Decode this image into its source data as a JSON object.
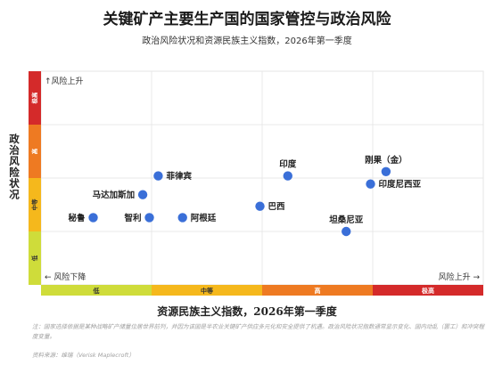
{
  "title": "关键矿产主要生产国的国家管控与政治风险",
  "subtitle": "政治风险状况和资源民族主义指数，2026年第一季度",
  "note": "注：国家选择依据是某种战略矿产储量位居世界前列，并因为该国是半农业关键矿产供应多元化和安全提供了机遇。政治风险状况指数通常显示变化、国内动乱（罢工）和冲突程度变量。",
  "source": "资料来源：维瑞（Verisk Maplecroft）",
  "chart_data": {
    "type": "scatter",
    "title": "关键矿产主要生产国的国家管控与政治风险",
    "subtitle": "政治风险状况和资源民族主义指数，2026年第一季度",
    "xlabel": "资源民族主义指数，2026年第一季度",
    "ylabel": "政治风险状况",
    "xlim": [
      0,
      10
    ],
    "ylim": [
      0,
      10
    ],
    "grid": true,
    "x_bands": [
      {
        "label": "低",
        "from": 0,
        "to": 2.5,
        "color": "#cfdc3a"
      },
      {
        "label": "中等",
        "from": 2.5,
        "to": 5,
        "color": "#f5b81c"
      },
      {
        "label": "高",
        "from": 5,
        "to": 7.5,
        "color": "#ee7a22"
      },
      {
        "label": "极高",
        "from": 7.5,
        "to": 10,
        "color": "#d42a2a"
      }
    ],
    "y_bands": [
      {
        "label": "低",
        "from": 0,
        "to": 2.5,
        "color": "#cfdc3a"
      },
      {
        "label": "中等",
        "from": 2.5,
        "to": 5,
        "color": "#f5b81c"
      },
      {
        "label": "高",
        "from": 5,
        "to": 7.5,
        "color": "#ee7a22"
      },
      {
        "label": "极高",
        "from": 7.5,
        "to": 10,
        "color": "#d42a2a"
      }
    ],
    "annotations": {
      "risk_up": "风险上升",
      "risk_down": "风险下降",
      "risk_up_right": "风险上升"
    },
    "point_color": "#3a6fd8",
    "points": [
      {
        "label": "菲律宾",
        "x": 2.65,
        "y": 5.1,
        "label_pos": "right"
      },
      {
        "label": "马达加斯加",
        "x": 2.3,
        "y": 4.22,
        "label_pos": "left"
      },
      {
        "label": "秘鲁",
        "x": 1.18,
        "y": 3.15,
        "label_pos": "left"
      },
      {
        "label": "智利",
        "x": 2.45,
        "y": 3.15,
        "label_pos": "left"
      },
      {
        "label": "阿根廷",
        "x": 3.2,
        "y": 3.15,
        "label_pos": "right"
      },
      {
        "label": "巴西",
        "x": 4.95,
        "y": 3.68,
        "label_pos": "right"
      },
      {
        "label": "印度",
        "x": 5.58,
        "y": 5.1,
        "label_pos": "above"
      },
      {
        "label": "刚果（金）",
        "x": 7.8,
        "y": 5.3,
        "label_pos": "above"
      },
      {
        "label": "印度尼西亚",
        "x": 7.45,
        "y": 4.72,
        "label_pos": "right"
      },
      {
        "label": "坦桑尼亚",
        "x": 6.9,
        "y": 2.5,
        "label_pos": "above"
      }
    ]
  }
}
